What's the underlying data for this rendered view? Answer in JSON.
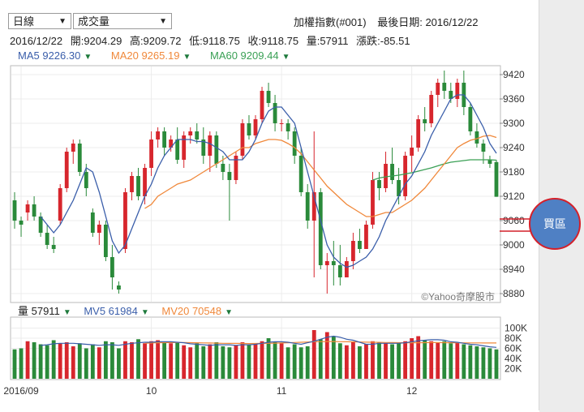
{
  "header": {
    "period_select": "日線",
    "indicator_select": "成交量",
    "index_name": "加權指數(#001)",
    "last_date_label": "最後日期: 2016/12/22"
  },
  "ohlc": {
    "date": "2016/12/22",
    "open": "開:9204.29",
    "high": "高:9209.72",
    "low": "低:9118.75",
    "close": "收:9118.75",
    "volume": "量:57911",
    "change": "漲跌:-85.51"
  },
  "ma_legend": {
    "ma5": "MA5 9226.30",
    "ma20": "MA20 9265.19",
    "ma60": "MA60 9209.44",
    "arrow": "▼"
  },
  "volume_legend": {
    "vol": "量 57911",
    "mv5": "MV5 61984",
    "mv20": "MV20 70548",
    "arrow": "▼"
  },
  "watermark": "©Yahoo奇摩股市",
  "buy_zone_label": "買區",
  "colors": {
    "up": "#d7262d",
    "down": "#2a8a3a",
    "ma5": "#3a5eaa",
    "ma20": "#f0883a",
    "ma60": "#3aa055",
    "badge": "#4f80c4",
    "arrow_line": "#d4202a"
  },
  "chart_data": [
    {
      "type": "candlestick",
      "title": "加權指數(#001)",
      "y_ticks": [
        9420,
        9360,
        9300,
        9240,
        9180,
        9120,
        9060,
        9000,
        8940,
        8880
      ],
      "ylim": [
        8860,
        9440
      ],
      "x_ticks": [
        {
          "label": "2016/09",
          "index": 1
        },
        {
          "label": "10",
          "index": 21
        },
        {
          "label": "11",
          "index": 41
        },
        {
          "label": "12",
          "index": 61
        }
      ],
      "candles": [
        [
          9110,
          9130,
          9040,
          9060
        ],
        [
          9060,
          9070,
          9020,
          9050
        ],
        [
          9080,
          9110,
          9060,
          9100
        ],
        [
          9100,
          9120,
          9060,
          9070
        ],
        [
          9070,
          9080,
          9020,
          9030
        ],
        [
          9030,
          9050,
          8990,
          9000
        ],
        [
          9000,
          9020,
          8980,
          8990
        ],
        [
          9060,
          9150,
          9050,
          9140
        ],
        [
          9140,
          9240,
          9130,
          9230
        ],
        [
          9230,
          9260,
          9200,
          9250
        ],
        [
          9250,
          9260,
          9170,
          9180
        ],
        [
          9180,
          9200,
          9120,
          9140
        ],
        [
          9080,
          9090,
          9020,
          9030
        ],
        [
          9030,
          9060,
          9000,
          9050
        ],
        [
          9050,
          9060,
          8960,
          8970
        ],
        [
          8970,
          9000,
          8890,
          8920
        ],
        [
          8900,
          8910,
          8880,
          8890
        ],
        [
          8990,
          9140,
          8980,
          9130
        ],
        [
          9130,
          9180,
          9110,
          9170
        ],
        [
          9170,
          9190,
          9110,
          9120
        ],
        [
          9120,
          9200,
          9100,
          9190
        ],
        [
          9190,
          9280,
          9170,
          9260
        ],
        [
          9260,
          9290,
          9240,
          9280
        ],
        [
          9280,
          9290,
          9220,
          9240
        ],
        [
          9240,
          9270,
          9230,
          9260
        ],
        [
          9260,
          9290,
          9200,
          9210
        ],
        [
          9210,
          9280,
          9190,
          9270
        ],
        [
          9270,
          9290,
          9250,
          9280
        ],
        [
          9280,
          9300,
          9250,
          9260
        ],
        [
          9260,
          9290,
          9200,
          9220
        ],
        [
          9220,
          9280,
          9180,
          9270
        ],
        [
          9270,
          9280,
          9190,
          9200
        ],
        [
          9200,
          9220,
          9160,
          9180
        ],
        [
          9180,
          9200,
          9060,
          9160
        ],
        [
          9160,
          9230,
          9150,
          9220
        ],
        [
          9220,
          9310,
          9210,
          9300
        ],
        [
          9300,
          9320,
          9260,
          9270
        ],
        [
          9270,
          9320,
          9260,
          9310
        ],
        [
          9310,
          9390,
          9300,
          9380
        ],
        [
          9380,
          9400,
          9340,
          9350
        ],
        [
          9350,
          9370,
          9280,
          9300
        ],
        [
          9300,
          9310,
          9280,
          9300
        ],
        [
          9300,
          9310,
          9260,
          9280
        ],
        [
          9280,
          9290,
          9200,
          9220
        ],
        [
          9220,
          9240,
          9120,
          9130
        ],
        [
          9130,
          9150,
          9040,
          9060
        ],
        [
          9060,
          9280,
          8920,
          9130
        ],
        [
          9130,
          9140,
          8940,
          8950
        ],
        [
          8950,
          8980,
          8880,
          8960
        ],
        [
          8960,
          9010,
          8900,
          8950
        ],
        [
          8950,
          9000,
          8900,
          8920
        ],
        [
          8920,
          8970,
          8920,
          8960
        ],
        [
          8960,
          9030,
          8940,
          9010
        ],
        [
          9010,
          9040,
          8980,
          8990
        ],
        [
          8990,
          9060,
          8990,
          9050
        ],
        [
          9050,
          9180,
          9040,
          9160
        ],
        [
          9160,
          9180,
          9110,
          9140
        ],
        [
          9140,
          9230,
          9130,
          9200
        ],
        [
          9200,
          9240,
          9150,
          9160
        ],
        [
          9160,
          9190,
          9100,
          9120
        ],
        [
          9120,
          9230,
          9110,
          9220
        ],
        [
          9220,
          9270,
          9180,
          9240
        ],
        [
          9240,
          9320,
          9230,
          9310
        ],
        [
          9310,
          9340,
          9280,
          9300
        ],
        [
          9300,
          9380,
          9290,
          9370
        ],
        [
          9370,
          9410,
          9340,
          9400
        ],
        [
          9400,
          9430,
          9360,
          9380
        ],
        [
          9380,
          9400,
          9350,
          9360
        ],
        [
          9360,
          9410,
          9340,
          9400
        ],
        [
          9400,
          9430,
          9320,
          9340
        ],
        [
          9340,
          9350,
          9270,
          9280
        ],
        [
          9280,
          9300,
          9240,
          9250
        ],
        [
          9250,
          9260,
          9200,
          9230
        ],
        [
          9210,
          9220,
          9190,
          9200
        ],
        [
          9204.29,
          9209.72,
          9118.75,
          9118.75
        ]
      ],
      "ma5": [
        null,
        null,
        null,
        null,
        9070,
        9050,
        9030,
        9050,
        9080,
        9110,
        9150,
        9190,
        9180,
        9130,
        9070,
        9010,
        8980,
        9000,
        9040,
        9080,
        9120,
        9150,
        9190,
        9220,
        9240,
        9260,
        9260,
        9260,
        9255,
        9255,
        9250,
        9240,
        9230,
        9210,
        9210,
        9210,
        9230,
        9260,
        9300,
        9330,
        9340,
        9340,
        9320,
        9300,
        9240,
        9180,
        9120,
        9060,
        9000,
        8970,
        8955,
        8945,
        8950,
        8960,
        8970,
        8990,
        9020,
        9060,
        9090,
        9120,
        9150,
        9170,
        9200,
        9230,
        9270,
        9300,
        9330,
        9360,
        9370,
        9370,
        9350,
        9320,
        9290,
        9250,
        9226
      ],
      "ma20": [
        null,
        null,
        null,
        null,
        null,
        null,
        null,
        null,
        null,
        null,
        null,
        null,
        null,
        null,
        null,
        null,
        null,
        null,
        null,
        null,
        9090,
        9100,
        9120,
        9130,
        9140,
        9150,
        9155,
        9160,
        9170,
        9180,
        9190,
        9200,
        9210,
        9220,
        9230,
        9240,
        9240,
        9250,
        9255,
        9260,
        9260,
        9258,
        9250,
        9240,
        9225,
        9205,
        9185,
        9165,
        9145,
        9130,
        9115,
        9100,
        9090,
        9080,
        9070,
        9070,
        9075,
        9080,
        9080,
        9090,
        9100,
        9110,
        9125,
        9140,
        9160,
        9180,
        9200,
        9220,
        9240,
        9250,
        9258,
        9262,
        9268,
        9270,
        9265
      ],
      "ma60": [
        null,
        null,
        null,
        null,
        null,
        null,
        null,
        null,
        null,
        null,
        null,
        null,
        null,
        null,
        null,
        null,
        null,
        null,
        null,
        null,
        null,
        null,
        null,
        null,
        null,
        null,
        null,
        null,
        null,
        null,
        null,
        null,
        null,
        null,
        null,
        null,
        null,
        null,
        null,
        null,
        null,
        null,
        null,
        null,
        null,
        null,
        null,
        null,
        null,
        null,
        null,
        null,
        null,
        null,
        null,
        9160,
        9165,
        9168,
        9170,
        9172,
        9175,
        9178,
        9182,
        9186,
        9190,
        9195,
        9200,
        9204,
        9206,
        9208,
        9210,
        9210,
        9210,
        9210,
        9209
      ]
    },
    {
      "type": "bar",
      "title": "量",
      "y_ticks": [
        100000,
        80000,
        60000,
        40000,
        20000
      ],
      "y_tick_labels": [
        "100K",
        "80K",
        "60K",
        "40K",
        "20K"
      ],
      "ylim": [
        0,
        120000
      ],
      "volumes": [
        58000,
        60000,
        74000,
        72000,
        68000,
        66000,
        76000,
        70000,
        72000,
        64000,
        70000,
        60000,
        68000,
        62000,
        74000,
        72000,
        60000,
        74000,
        72000,
        78000,
        70000,
        74000,
        76000,
        72000,
        70000,
        72000,
        66000,
        62000,
        70000,
        64000,
        68000,
        72000,
        64000,
        62000,
        66000,
        72000,
        68000,
        70000,
        74000,
        80000,
        72000,
        70000,
        62000,
        68000,
        62000,
        64000,
        96000,
        78000,
        92000,
        84000,
        70000,
        66000,
        72000,
        64000,
        68000,
        74000,
        72000,
        70000,
        68000,
        70000,
        74000,
        80000,
        84000,
        76000,
        74000,
        72000,
        74000,
        70000,
        72000,
        68000,
        66000,
        64000,
        62000,
        60000,
        57911
      ],
      "mv5": [
        null,
        null,
        null,
        null,
        66000,
        67000,
        69000,
        70000,
        70000,
        70000,
        69000,
        68000,
        67000,
        66000,
        67000,
        67000,
        66000,
        68000,
        70000,
        71000,
        72000,
        72000,
        73000,
        73000,
        73000,
        72000,
        71000,
        69000,
        68000,
        67000,
        66000,
        67000,
        67000,
        67000,
        66000,
        67000,
        67000,
        68000,
        70000,
        72000,
        73000,
        73000,
        72000,
        70000,
        68000,
        71000,
        74000,
        78000,
        82000,
        84000,
        82000,
        78000,
        76000,
        72000,
        68000,
        68000,
        70000,
        70000,
        70000,
        70000,
        71000,
        73000,
        75000,
        76000,
        77000,
        77000,
        76000,
        73000,
        72000,
        70000,
        68000,
        67000,
        65000,
        63000,
        61984
      ],
      "mv20": [
        null,
        null,
        null,
        null,
        null,
        null,
        null,
        null,
        null,
        null,
        null,
        null,
        null,
        null,
        null,
        null,
        null,
        null,
        null,
        null,
        70000,
        70500,
        71000,
        71200,
        71400,
        71500,
        71500,
        71200,
        71000,
        70800,
        70500,
        70200,
        70000,
        69800,
        69700,
        69600,
        69500,
        69600,
        69800,
        70000,
        70200,
        70500,
        71000,
        71500,
        72000,
        72500,
        73000,
        73200,
        73500,
        73400,
        73200,
        73000,
        72800,
        72500,
        72200,
        72000,
        71800,
        71600,
        71400,
        71200,
        71000,
        71000,
        71100,
        71200,
        71300,
        71300,
        71200,
        71100,
        71000,
        70900,
        70800,
        70700,
        70600,
        70550,
        70548
      ]
    }
  ]
}
